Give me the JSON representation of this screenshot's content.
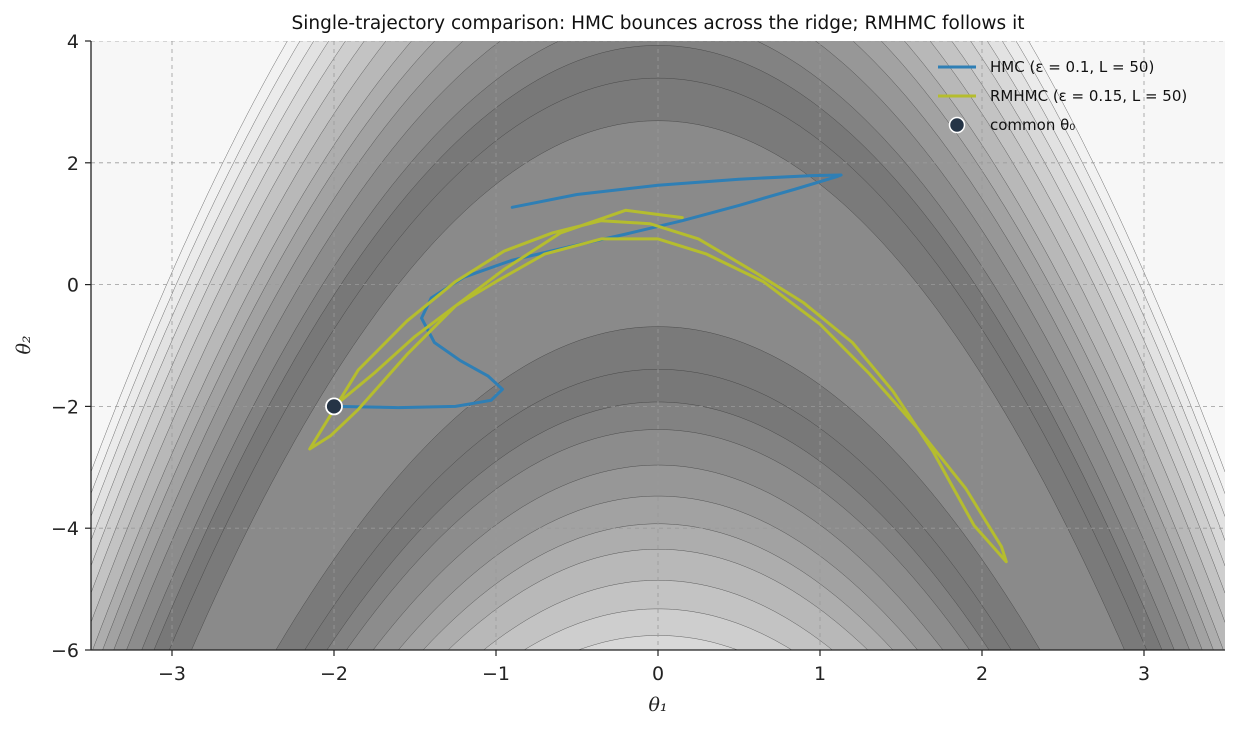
{
  "chart_data": {
    "type": "line",
    "title": "Single-trajectory comparison: HMC bounces across the ridge; RMHMC follows it",
    "xlabel": "θ₁",
    "ylabel": "θ₂",
    "xlim": [
      -3.5,
      3.5
    ],
    "ylim": [
      -6,
      4
    ],
    "xticks": [
      -3,
      -2,
      -1,
      0,
      1,
      2,
      3
    ],
    "yticks": [
      -6,
      -4,
      -2,
      0,
      2,
      4
    ],
    "xtick_labels": [
      "−3",
      "−2",
      "−1",
      "0",
      "1",
      "2",
      "3"
    ],
    "ytick_labels": [
      "−6",
      "−4",
      "−2",
      "0",
      "2",
      "4"
    ],
    "grid": true,
    "legend_position": "top-right",
    "background": "filled contours of the banana-shaped log-density, ridge along θ₂ = −θ₁²+1",
    "series": [
      {
        "name": "HMC (ε = 0.1, L = 50)",
        "color": "#2f7fb5",
        "x": [
          -2.0,
          -1.6,
          -1.25,
          -1.03,
          -0.96,
          -1.05,
          -1.22,
          -1.38,
          -1.46,
          -1.4,
          -1.2,
          -0.9,
          -0.55,
          -0.2,
          0.15,
          0.5,
          0.85,
          1.1,
          1.13,
          0.95,
          0.5,
          0.0,
          -0.5,
          -0.9
        ],
        "y": [
          -2.0,
          -2.02,
          -2.0,
          -1.9,
          -1.72,
          -1.5,
          -1.25,
          -0.95,
          -0.55,
          -0.22,
          0.12,
          0.4,
          0.62,
          0.83,
          1.05,
          1.3,
          1.57,
          1.77,
          1.8,
          1.79,
          1.73,
          1.63,
          1.48,
          1.27
        ]
      },
      {
        "name": "RMHMC (ε = 0.15, L = 50)",
        "color": "#b5bd2e",
        "x": [
          -2.0,
          -1.75,
          -1.5,
          -1.25,
          -1.0,
          -0.7,
          -0.35,
          0.0,
          0.3,
          0.65,
          1.0,
          1.3,
          1.6,
          1.9,
          2.12,
          2.15,
          1.95,
          1.7,
          1.45,
          1.2,
          0.9,
          0.6,
          0.25,
          -0.05,
          -0.35,
          -0.65,
          -0.95,
          -1.25,
          -1.55,
          -1.85,
          -2.15,
          -2.02,
          -1.85,
          -1.55,
          -1.25,
          -0.95,
          -0.6,
          -0.2,
          0.15
        ],
        "y": [
          -2.0,
          -1.45,
          -0.85,
          -0.35,
          0.05,
          0.5,
          0.75,
          0.75,
          0.5,
          0.05,
          -0.65,
          -1.45,
          -2.35,
          -3.35,
          -4.3,
          -4.55,
          -3.95,
          -2.75,
          -1.75,
          -0.95,
          -0.3,
          0.2,
          0.75,
          1.0,
          1.05,
          0.85,
          0.55,
          0.05,
          -0.6,
          -1.4,
          -2.7,
          -2.48,
          -2.05,
          -1.15,
          -0.35,
          0.25,
          0.85,
          1.22,
          1.1
        ]
      }
    ],
    "points": [
      {
        "name": "common θ₀",
        "x": -2.0,
        "y": -2.0,
        "color": "#253446"
      }
    ],
    "contour_levels": [
      0.4,
      1.0,
      2.0,
      3.0,
      4.0,
      5.5,
      7.0,
      8.5,
      10.0,
      12.0,
      14.0,
      16.0,
      18.0,
      20.0,
      22.0,
      24.0
    ],
    "contour_fills": [
      "#8a8a8a",
      "#7a7a7a",
      "#787878",
      "#828282",
      "#8c8c8c",
      "#979797",
      "#a2a2a2",
      "#adadad",
      "#b8b8b8",
      "#c3c3c3",
      "#cecece",
      "#d8d8d8",
      "#e2e2e2",
      "#ebebeb",
      "#f2f2f2",
      "#f7f7f7"
    ]
  },
  "legend": [
    {
      "label": "HMC (ε = 0.1, L = 50)",
      "kind": "line",
      "color": "#2f7fb5"
    },
    {
      "label": "RMHMC (ε = 0.15, L = 50)",
      "kind": "line",
      "color": "#b5bd2e"
    },
    {
      "label": "common θ₀",
      "kind": "marker",
      "color": "#253446"
    }
  ]
}
